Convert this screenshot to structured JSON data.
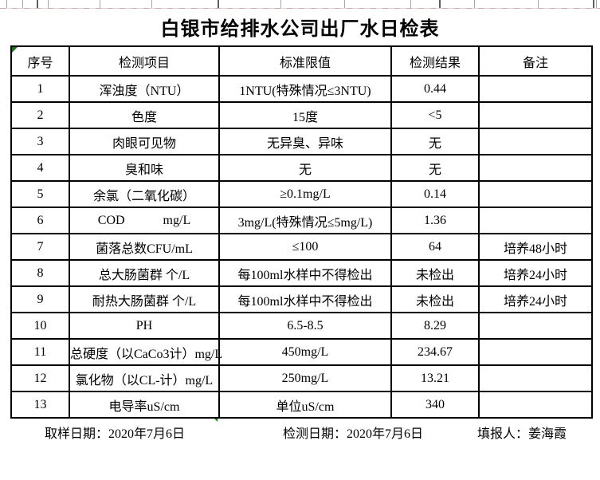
{
  "title": "白银市给排水公司出厂水日检表",
  "table": {
    "headers": [
      "序号",
      "检测项目",
      "标准限值",
      "检测结果",
      "备注"
    ],
    "rows": [
      {
        "no": "1",
        "item": "浑浊度（NTU）",
        "limit": "1NTU(特殊情况≤3NTU)",
        "result": "0.44",
        "remark": ""
      },
      {
        "no": "2",
        "item": "色度",
        "limit": "15度",
        "result": "<5",
        "remark": ""
      },
      {
        "no": "3",
        "item": "肉眼可见物",
        "limit": "无异臭、异味",
        "result": "无",
        "remark": ""
      },
      {
        "no": "4",
        "item": "臭和味",
        "limit": "无",
        "result": "无",
        "remark": ""
      },
      {
        "no": "5",
        "item": "余氯（二氧化碳）",
        "limit": "≥0.1mg/L",
        "result": "0.14",
        "remark": ""
      },
      {
        "no": "6",
        "item": "COD            mg/L",
        "limit": "3mg/L(特殊情况≤5mg/L)",
        "result": "1.36",
        "remark": ""
      },
      {
        "no": "7",
        "item": "菌落总数CFU/mL",
        "limit": "≤100",
        "result": "64",
        "remark": "培养48小时"
      },
      {
        "no": "8",
        "item": "总大肠菌群 个/L",
        "limit": "每100ml水样中不得检出",
        "result": "未检出",
        "remark": "培养24小时"
      },
      {
        "no": "9",
        "item": "耐热大肠菌群 个/L",
        "limit": "每100ml水样中不得检出",
        "result": "未检出",
        "remark": "培养24小时"
      },
      {
        "no": "10",
        "item": "PH",
        "limit": "6.5-8.5",
        "result": "8.29",
        "remark": ""
      },
      {
        "no": "11",
        "item": "总硬度（以CaCo3计）mg/L",
        "limit": "450mg/L",
        "result": "234.67",
        "remark": ""
      },
      {
        "no": "12",
        "item": "氯化物（以CL-计）mg/L",
        "limit": "250mg/L",
        "result": "13.21",
        "remark": ""
      },
      {
        "no": "13",
        "item": "电导率uS/cm",
        "limit": "单位uS/cm",
        "result": "340",
        "remark": ""
      }
    ]
  },
  "footer": {
    "sampling_date": "取样日期：2020年7月6日",
    "test_date": "检测日期：2020年7月6日",
    "reporter": "填报人：姜海霞"
  },
  "colors": {
    "table_border": "#000000",
    "indicator_green": "#0b7d0b",
    "grid_tick_gray": "#a6a6a6",
    "pagebreak_pink": "#d89a9a"
  }
}
